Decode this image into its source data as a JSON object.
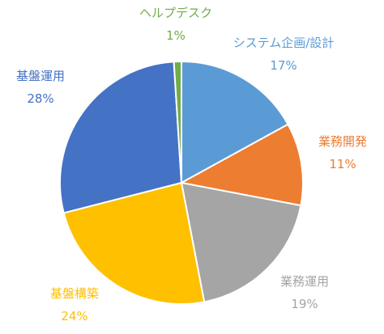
{
  "chart_data": {
    "type": "pie",
    "slices": [
      {
        "label": "システム企画/設計",
        "value": 17,
        "pct_label": "17%",
        "color": "#5B9BD5"
      },
      {
        "label": "業務開発",
        "value": 11,
        "pct_label": "11%",
        "color": "#ED7D31"
      },
      {
        "label": "業務運用",
        "value": 19,
        "pct_label": "19%",
        "color": "#A5A5A5"
      },
      {
        "label": "基盤構築",
        "value": 24,
        "pct_label": "24%",
        "color": "#FFC000"
      },
      {
        "label": "基盤運用",
        "value": 28,
        "pct_label": "28%",
        "color": "#4472C4"
      },
      {
        "label": "ヘルプデスク",
        "value": 1,
        "pct_label": "1%",
        "color": "#70AD47"
      }
    ],
    "start": "12 o'clock",
    "direction": "clockwise",
    "legend": "none",
    "data_labels": "outside"
  }
}
